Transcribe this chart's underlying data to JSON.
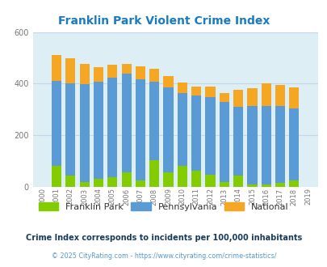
{
  "title": "Franklin Park Violent Crime Index",
  "title_color": "#1a7bbf",
  "years": [
    "2000",
    "2001",
    "2002",
    "2003",
    "2004",
    "2005",
    "2006",
    "2007",
    "2008",
    "2009",
    "2010",
    "2011",
    "2012",
    "2013",
    "2014",
    "2015",
    "2016",
    "2017",
    "2018",
    "2019"
  ],
  "franklin_park": [
    0,
    82,
    45,
    18,
    32,
    38,
    55,
    25,
    105,
    55,
    82,
    62,
    48,
    20,
    45,
    10,
    8,
    15,
    25,
    0
  ],
  "pennsylvania": [
    0,
    410,
    400,
    398,
    408,
    422,
    440,
    418,
    408,
    385,
    365,
    353,
    348,
    330,
    310,
    315,
    312,
    312,
    305,
    0
  ],
  "national": [
    0,
    510,
    498,
    475,
    465,
    473,
    475,
    468,
    458,
    430,
    405,
    390,
    390,
    365,
    375,
    383,
    400,
    395,
    385,
    0
  ],
  "fp_color": "#82c c00",
  "pa_color": "#5b9bd5",
  "nat_color": "#f5a623",
  "bg_color": "#ddeef5",
  "plot_bg": "#ddeef5",
  "ylim": [
    0,
    600
  ],
  "yticks": [
    0,
    200,
    400,
    600
  ],
  "grid_color": "#c0d8e8",
  "footnote": "Crime Index corresponds to incidents per 100,000 inhabitants",
  "copyright": "© 2025 CityRating.com - https://www.cityrating.com/crime-statistics/",
  "footnote_color": "#1a3a5c",
  "copyright_color": "#5599cc",
  "bar_width": 0.7
}
